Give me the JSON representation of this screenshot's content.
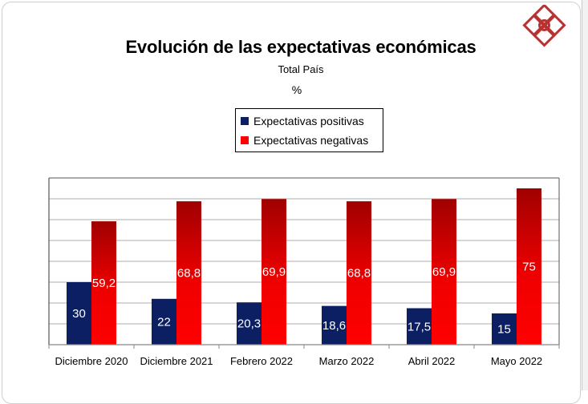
{
  "chart_data": {
    "type": "bar",
    "title": "Evolución de las expectativas económicas",
    "subtitle": "Total País",
    "unit_label": "%",
    "xlabel": "",
    "ylabel": "",
    "ylim": [
      0,
      80
    ],
    "ytick_step": 10,
    "grid": true,
    "legend_position": "top-center",
    "categories": [
      "Diciembre 2020",
      "Diciembre 2021",
      "Febrero 2022",
      "Marzo 2022",
      "Abril 2022",
      "Mayo 2022"
    ],
    "series": [
      {
        "name": "Expectativas positivas",
        "color": "#0d1f63",
        "values": [
          30,
          22,
          20.3,
          18.6,
          17.5,
          15
        ],
        "labels": [
          "30",
          "22",
          "20,3",
          "18,6",
          "17,5",
          "15"
        ]
      },
      {
        "name": "Expectativas negativas",
        "color": "#ff0000",
        "color_top": "#a00000",
        "values": [
          59.2,
          68.8,
          69.9,
          68.8,
          69.9,
          75
        ],
        "labels": [
          "59,2",
          "68,8",
          "69,9",
          "68,8",
          "69,9",
          "75"
        ]
      }
    ]
  },
  "logo": {
    "name": "organization-logo",
    "color": "#b83232"
  }
}
